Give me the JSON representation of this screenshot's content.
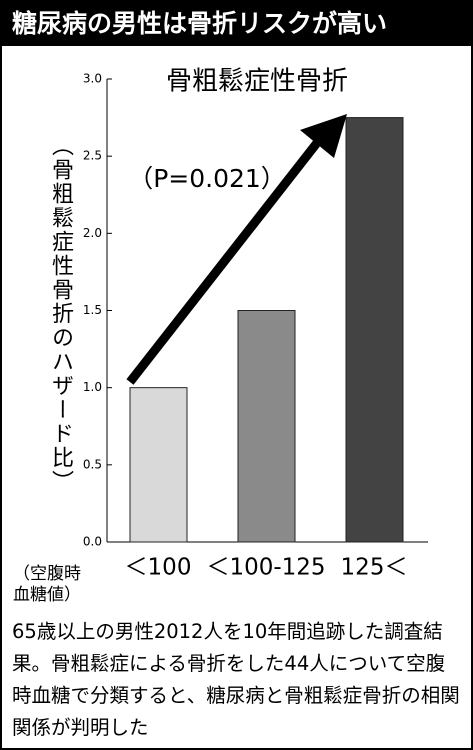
{
  "header": {
    "title": "糖尿病の男性は骨折リスクが高い"
  },
  "chart_data": {
    "type": "bar",
    "title": "骨粗鬆症性骨折",
    "ylabel": "（骨粗鬆症性骨折のハザード比）",
    "xlabel": [
      "（空腹時",
      "血糖値）"
    ],
    "annotation": "（P=0.021）",
    "categories": [
      "＜100",
      "＜100-125",
      "125＜"
    ],
    "values": [
      1.0,
      1.5,
      2.75
    ],
    "colors": [
      "#d9d9d9",
      "#8a8a8a",
      "#434343"
    ],
    "ylim": [
      0,
      3
    ],
    "yticks": [
      {
        "value": 0,
        "label": "0.0"
      },
      0.5,
      {
        "value": 1,
        "label": "1.0"
      },
      1.5,
      {
        "value": 2,
        "label": "2.0"
      },
      2.5,
      {
        "value": 3,
        "label": "3.0"
      }
    ]
  },
  "caption": "65歳以上の男性2012人を10年間追跡した調査結果。骨粗鬆症による骨折をした44人について空腹時血糖で分類すると、糖尿病と骨粗鬆症骨折の相関関係が判明した"
}
